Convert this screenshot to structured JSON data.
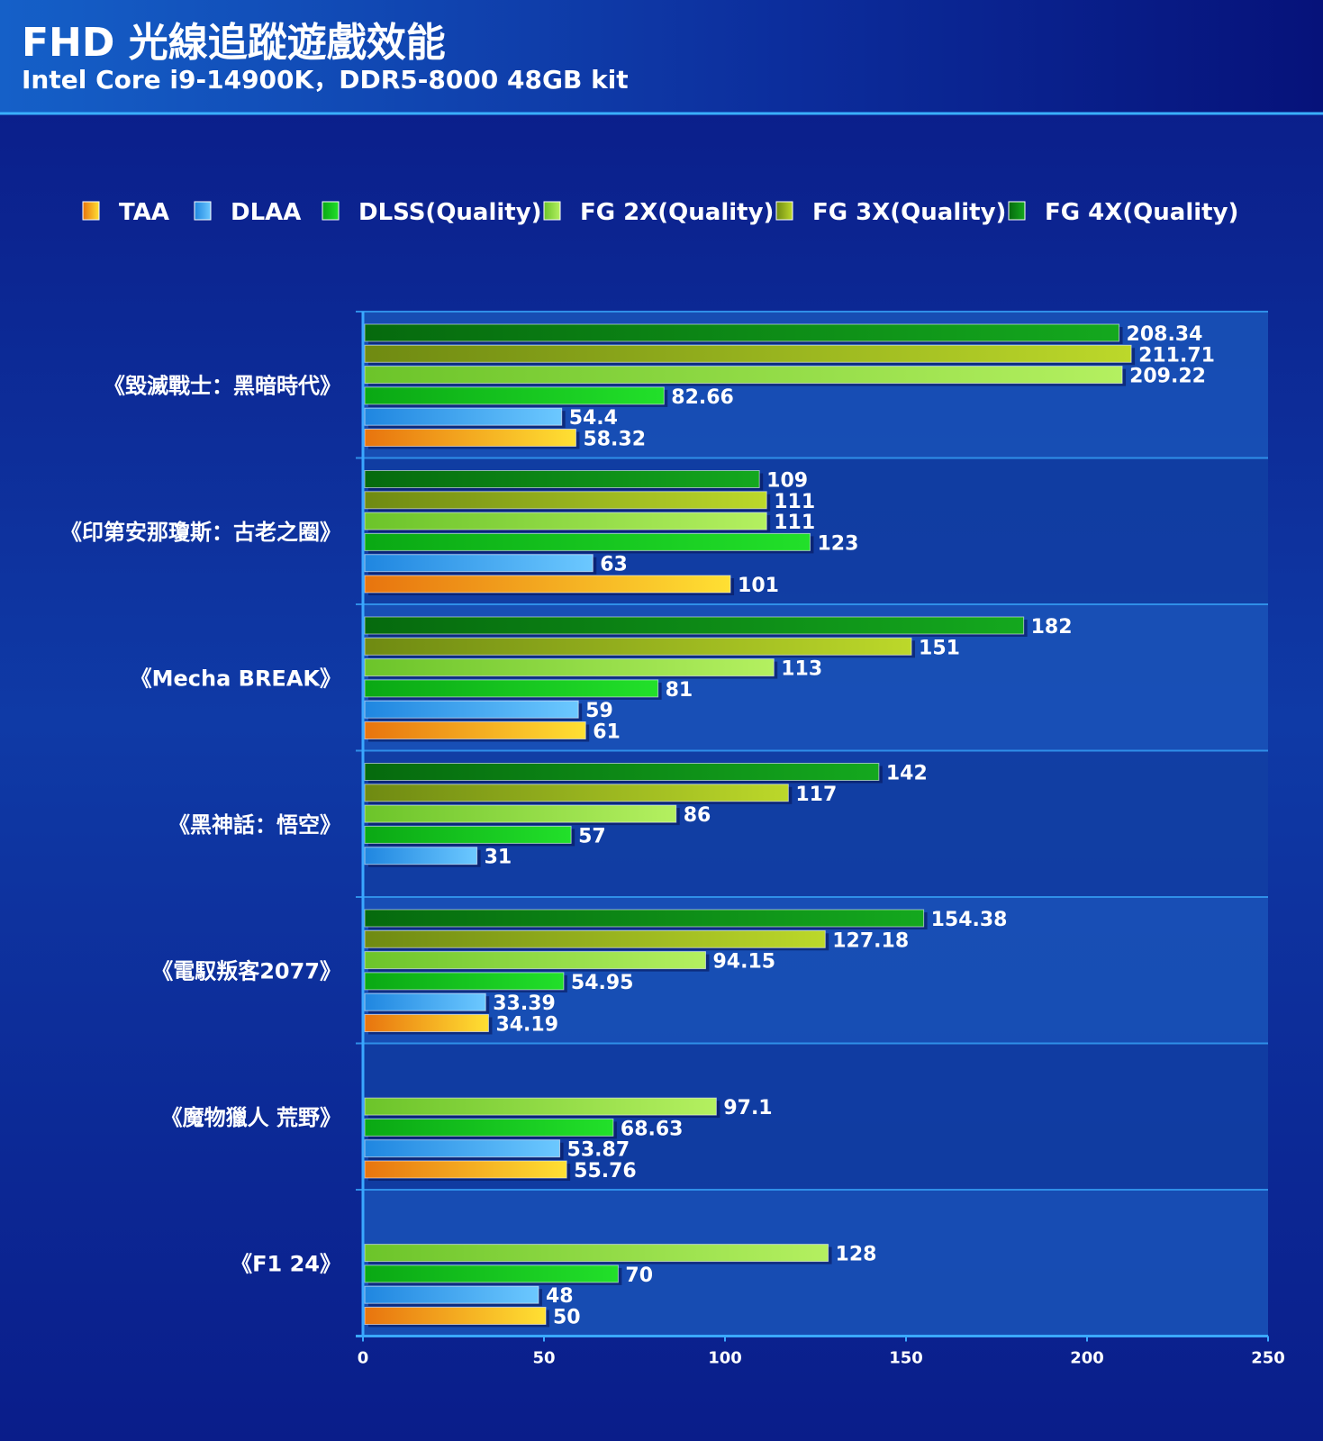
{
  "chart_data": {
    "type": "bar",
    "orientation": "horizontal",
    "title": "FHD 光線追蹤遊戲效能",
    "subtitle": "Intel Core i9-14900K，DDR5-8000 48GB kit",
    "xlim": [
      0,
      250
    ],
    "x_ticks": [
      "0",
      "50",
      "100",
      "150",
      "200",
      "250"
    ],
    "legend_position": "top",
    "categories": [
      "《毀滅戰士：黑暗時代》",
      "《印第安那瓊斯：古老之圈》",
      "《Mecha BREAK》",
      "《黑神話：悟空》",
      "《電馭叛客2077》",
      "《魔物獵人 荒野》",
      "《F1 24》"
    ],
    "series": [
      {
        "name": "TAA",
        "color": "#f5a623",
        "values": [
          58.32,
          101,
          61,
          null,
          34.19,
          55.76,
          50
        ]
      },
      {
        "name": "DLAA",
        "color": "#3aa8f0",
        "values": [
          54.4,
          63,
          59,
          31,
          33.39,
          53.87,
          48
        ]
      },
      {
        "name": "DLSS(Quality)",
        "color": "#19c41f",
        "values": [
          82.66,
          123,
          81,
          57,
          54.95,
          68.63,
          70
        ]
      },
      {
        "name": "FG 2X(Quality)",
        "color": "#8fe04a",
        "values": [
          209.22,
          111,
          113,
          86,
          94.15,
          97.1,
          128
        ]
      },
      {
        "name": "FG 3X(Quality)",
        "color": "#9cbd1e",
        "values": [
          211.71,
          111,
          151,
          117,
          127.18,
          null,
          null
        ]
      },
      {
        "name": "FG 4X(Quality)",
        "color": "#0d8f16",
        "values": [
          208.34,
          109,
          182,
          142,
          154.38,
          null,
          null
        ]
      }
    ],
    "value_labels": [
      [
        "58.32",
        "54.4",
        "82.66",
        "209.22",
        "211.71",
        "208.34"
      ],
      [
        "101",
        "63",
        "123",
        "111",
        "111",
        "109"
      ],
      [
        "61",
        "59",
        "81",
        "113",
        "151",
        "182"
      ],
      [
        "",
        "31",
        "57",
        "86",
        "117",
        "142"
      ],
      [
        "34.19",
        "33.39",
        "54.95",
        "94.15",
        "127.18",
        "154.38"
      ],
      [
        "55.76",
        "53.87",
        "68.63",
        "97.1",
        "",
        ""
      ],
      [
        "50",
        "48",
        "70",
        "128",
        "",
        ""
      ]
    ]
  }
}
